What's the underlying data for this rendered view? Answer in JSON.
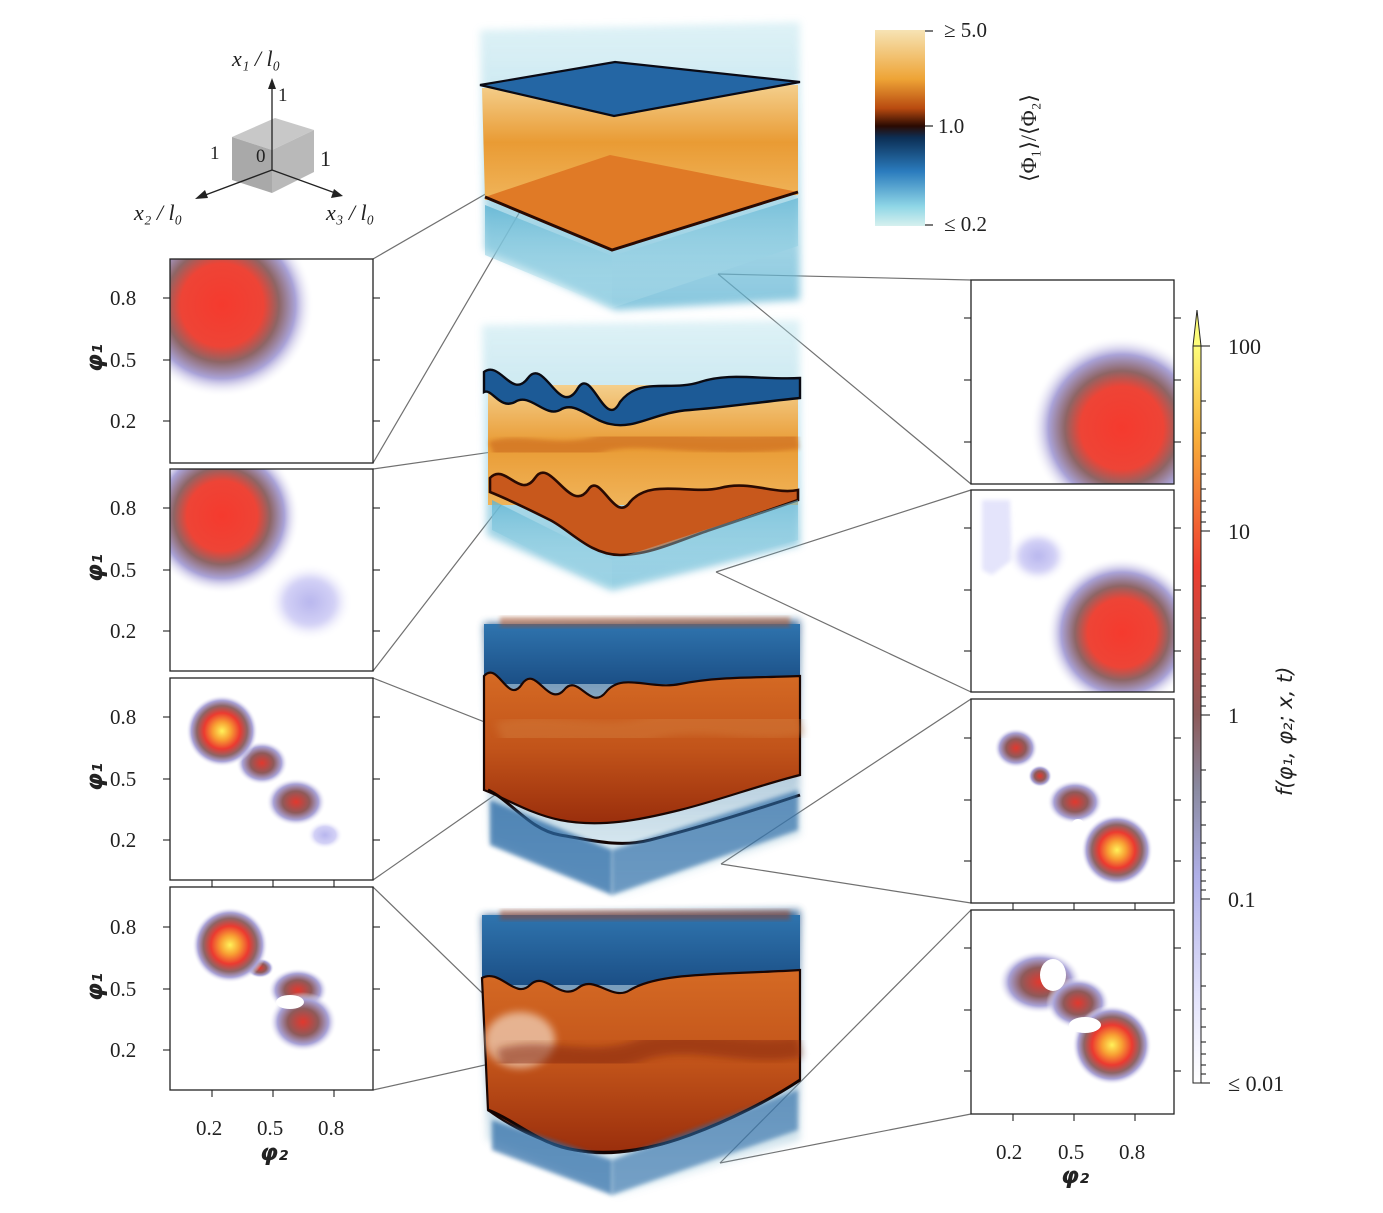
{
  "axes_glyph": {
    "x1_label": "x₁ / l₀",
    "x2_label": "x₂ / l₀",
    "x3_label": "x₃ / l₀",
    "tick_one_a": "1",
    "tick_one_b": "1",
    "tick_one_c": "1",
    "tick_zero": "0"
  },
  "ratio_colorbar": {
    "label": "⟨Φ₁⟩/⟨Φ₂⟩",
    "ticks": [
      "≥ 5.0",
      "1.0",
      "≤ 0.2"
    ],
    "colors": [
      "#f6e3b4",
      "#f0a030",
      "#a8380f",
      "#2a0a02",
      "#0c2f55",
      "#2a7bbd",
      "#8fd6e6",
      "#d0eef0"
    ]
  },
  "pdf_colorbar": {
    "label": "f(φ₁, φ₂; x, t)",
    "ticks": [
      "100",
      "10",
      "1",
      "0.1",
      "≤ 0.01"
    ]
  },
  "left_panels": {
    "y_label": "φ₁",
    "y_ticks": [
      "0.8",
      "0.5",
      "0.2"
    ],
    "x_label": "φ₂",
    "x_ticks": [
      "0.2",
      "0.5",
      "0.8"
    ]
  },
  "right_panels": {
    "x_label": "φ₂",
    "x_ticks": [
      "0.2",
      "0.5",
      "0.8"
    ]
  }
}
